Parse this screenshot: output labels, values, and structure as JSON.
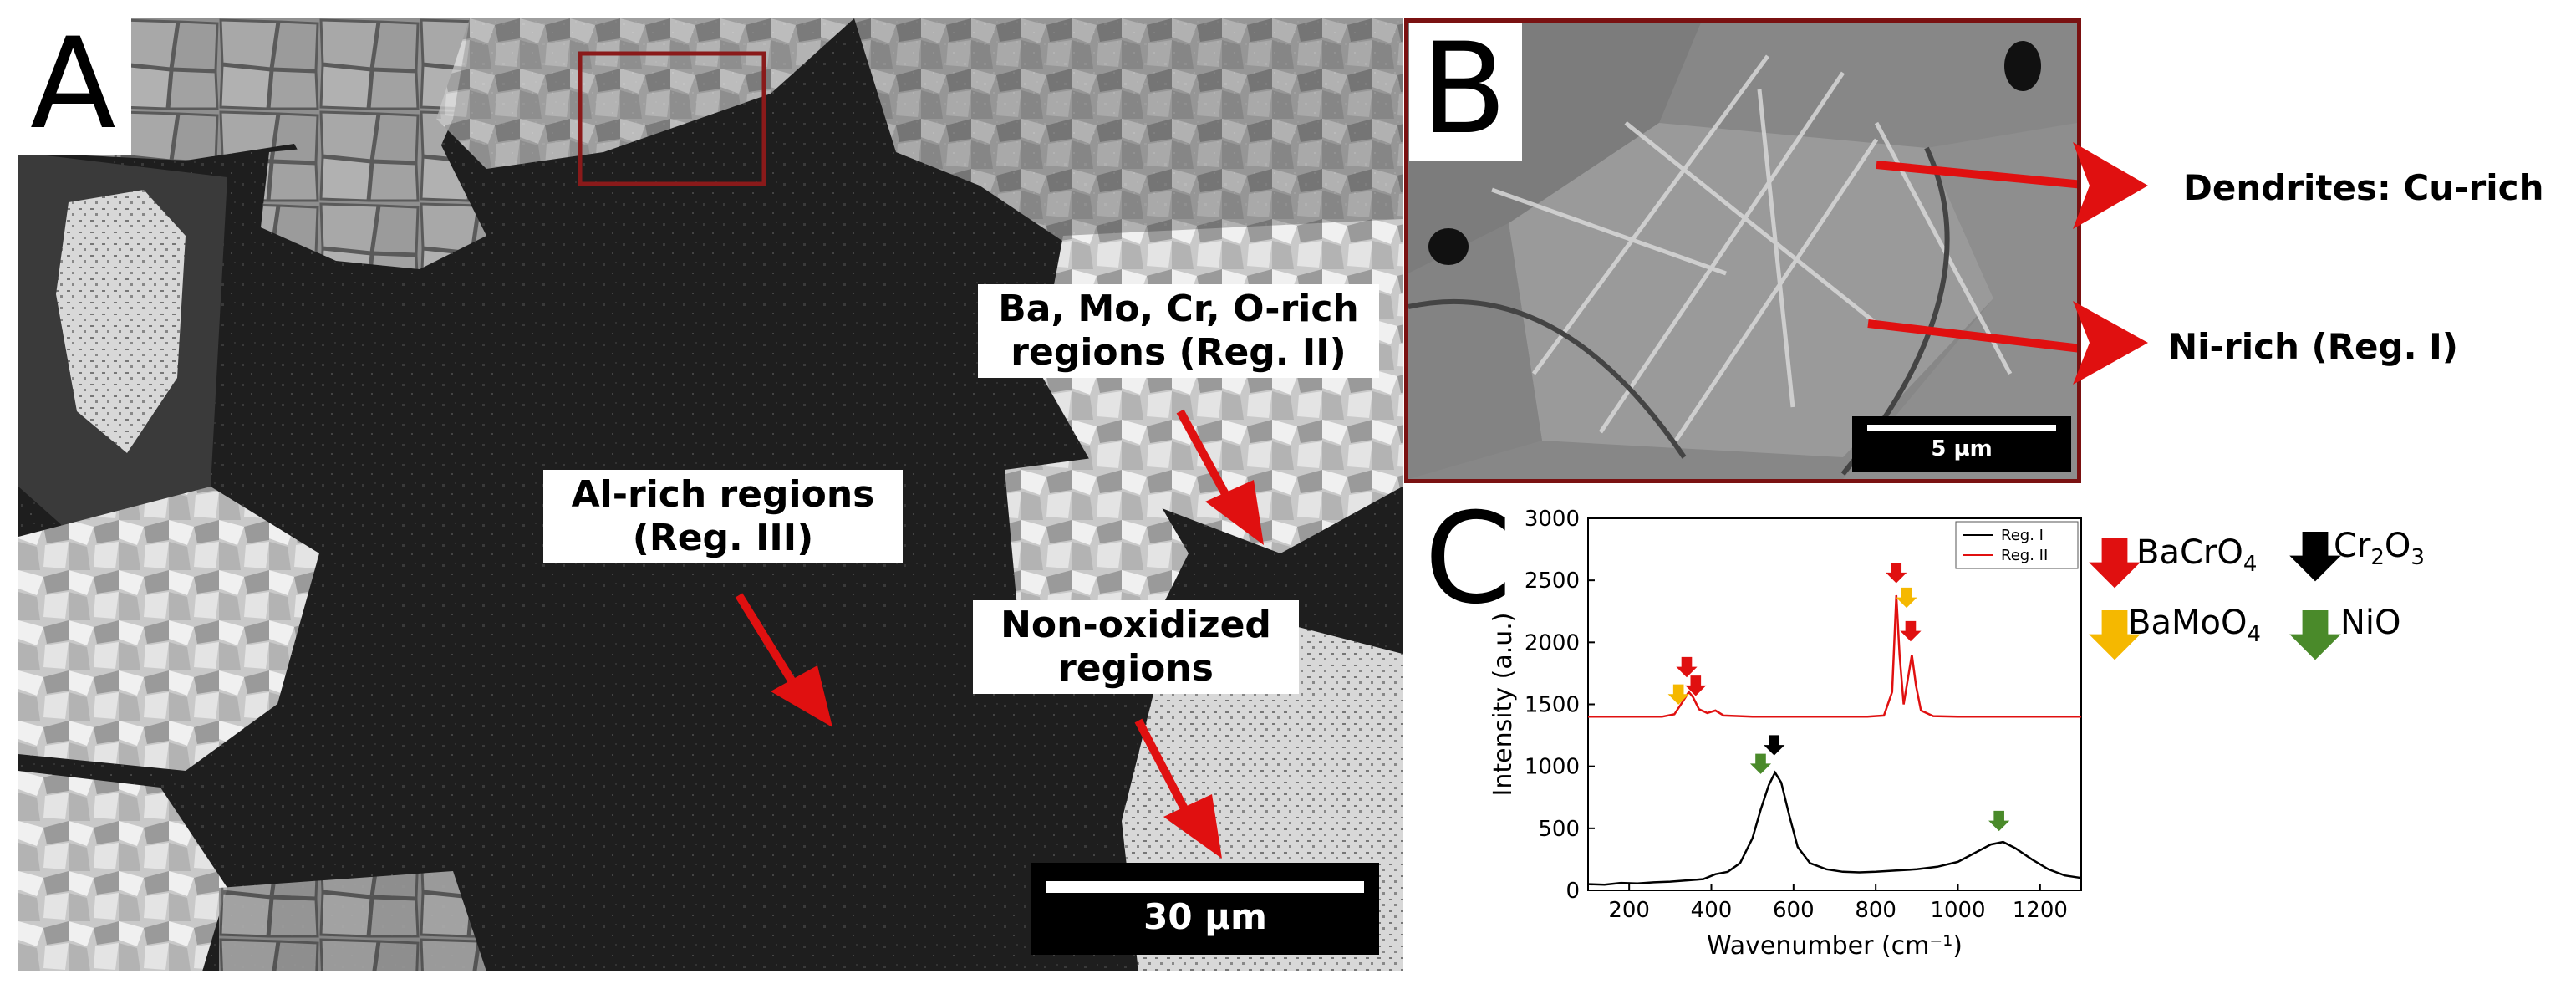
{
  "panels": {
    "a": "A",
    "b": "B",
    "c": "C"
  },
  "panel_a": {
    "callouts": [
      {
        "lines": [
          "Ba, Mo, Cr, O-rich",
          "regions (Reg. II)"
        ]
      },
      {
        "lines": [
          "Al-rich regions",
          "(Reg. III)"
        ]
      },
      {
        "lines": [
          "Non-oxidized",
          "regions"
        ]
      }
    ],
    "scalebar": "30 µm"
  },
  "panel_b": {
    "labels": [
      "Dendrites: Cu-rich",
      "Ni-rich (Reg. I)"
    ],
    "scalebar": "5 µm"
  },
  "colors": {
    "red": "#e01010",
    "black": "#000000",
    "yellow": "#f5b800",
    "green": "#4a8a2a",
    "frame": "#7a1111"
  },
  "legend": [
    {
      "label": "BaCrO4",
      "color": "#e01010"
    },
    {
      "label": "Cr2O3",
      "color": "#000000"
    },
    {
      "label": "BaMoO4",
      "color": "#f5b800"
    },
    {
      "label": "NiO",
      "color": "#4a8a2a"
    }
  ],
  "chart_data": {
    "type": "line",
    "xlabel": "Wavenumber (cm⁻¹)",
    "ylabel": "Intensity (a.u.)",
    "xlim": [
      100,
      1300
    ],
    "ylim": [
      0,
      3000
    ],
    "x_ticks": [
      200,
      400,
      600,
      800,
      1000,
      1200
    ],
    "y_ticks": [
      0,
      500,
      1000,
      1500,
      2000,
      2500,
      3000
    ],
    "legend_position": "top-right",
    "series": [
      {
        "name": "Reg. I",
        "color": "#000000",
        "points": [
          [
            100,
            50
          ],
          [
            140,
            45
          ],
          [
            180,
            60
          ],
          [
            220,
            55
          ],
          [
            260,
            65
          ],
          [
            300,
            70
          ],
          [
            340,
            80
          ],
          [
            380,
            90
          ],
          [
            410,
            130
          ],
          [
            440,
            150
          ],
          [
            470,
            220
          ],
          [
            500,
            420
          ],
          [
            520,
            650
          ],
          [
            540,
            850
          ],
          [
            555,
            950
          ],
          [
            570,
            870
          ],
          [
            590,
            600
          ],
          [
            610,
            350
          ],
          [
            640,
            220
          ],
          [
            680,
            170
          ],
          [
            720,
            150
          ],
          [
            760,
            145
          ],
          [
            800,
            150
          ],
          [
            850,
            160
          ],
          [
            900,
            170
          ],
          [
            950,
            190
          ],
          [
            1000,
            230
          ],
          [
            1040,
            300
          ],
          [
            1080,
            370
          ],
          [
            1110,
            390
          ],
          [
            1140,
            340
          ],
          [
            1180,
            250
          ],
          [
            1220,
            170
          ],
          [
            1260,
            120
          ],
          [
            1300,
            100
          ]
        ]
      },
      {
        "name": "Reg. II",
        "color": "#e01010",
        "points": [
          [
            100,
            1400
          ],
          [
            200,
            1400
          ],
          [
            280,
            1400
          ],
          [
            310,
            1420
          ],
          [
            330,
            1520
          ],
          [
            345,
            1600
          ],
          [
            355,
            1560
          ],
          [
            370,
            1460
          ],
          [
            390,
            1430
          ],
          [
            410,
            1450
          ],
          [
            430,
            1410
          ],
          [
            500,
            1400
          ],
          [
            600,
            1400
          ],
          [
            700,
            1400
          ],
          [
            780,
            1400
          ],
          [
            820,
            1410
          ],
          [
            840,
            1600
          ],
          [
            850,
            2380
          ],
          [
            858,
            1900
          ],
          [
            868,
            1500
          ],
          [
            878,
            1700
          ],
          [
            888,
            1900
          ],
          [
            898,
            1650
          ],
          [
            910,
            1450
          ],
          [
            940,
            1405
          ],
          [
            1000,
            1400
          ],
          [
            1100,
            1400
          ],
          [
            1200,
            1400
          ],
          [
            1300,
            1400
          ]
        ]
      }
    ],
    "annotations": [
      {
        "compound": "BaMoO4",
        "x": 320,
        "y": 1540
      },
      {
        "compound": "BaCrO4",
        "x": 340,
        "y": 1760
      },
      {
        "compound": "BaCrO4",
        "x": 362,
        "y": 1610
      },
      {
        "compound": "BaCrO4",
        "x": 850,
        "y": 2520
      },
      {
        "compound": "BaMoO4",
        "x": 875,
        "y": 2320
      },
      {
        "compound": "BaCrO4",
        "x": 885,
        "y": 2050
      },
      {
        "compound": "NiO",
        "x": 520,
        "y": 980
      },
      {
        "compound": "Cr2O3",
        "x": 553,
        "y": 1130
      },
      {
        "compound": "NiO",
        "x": 1100,
        "y": 520
      }
    ]
  }
}
